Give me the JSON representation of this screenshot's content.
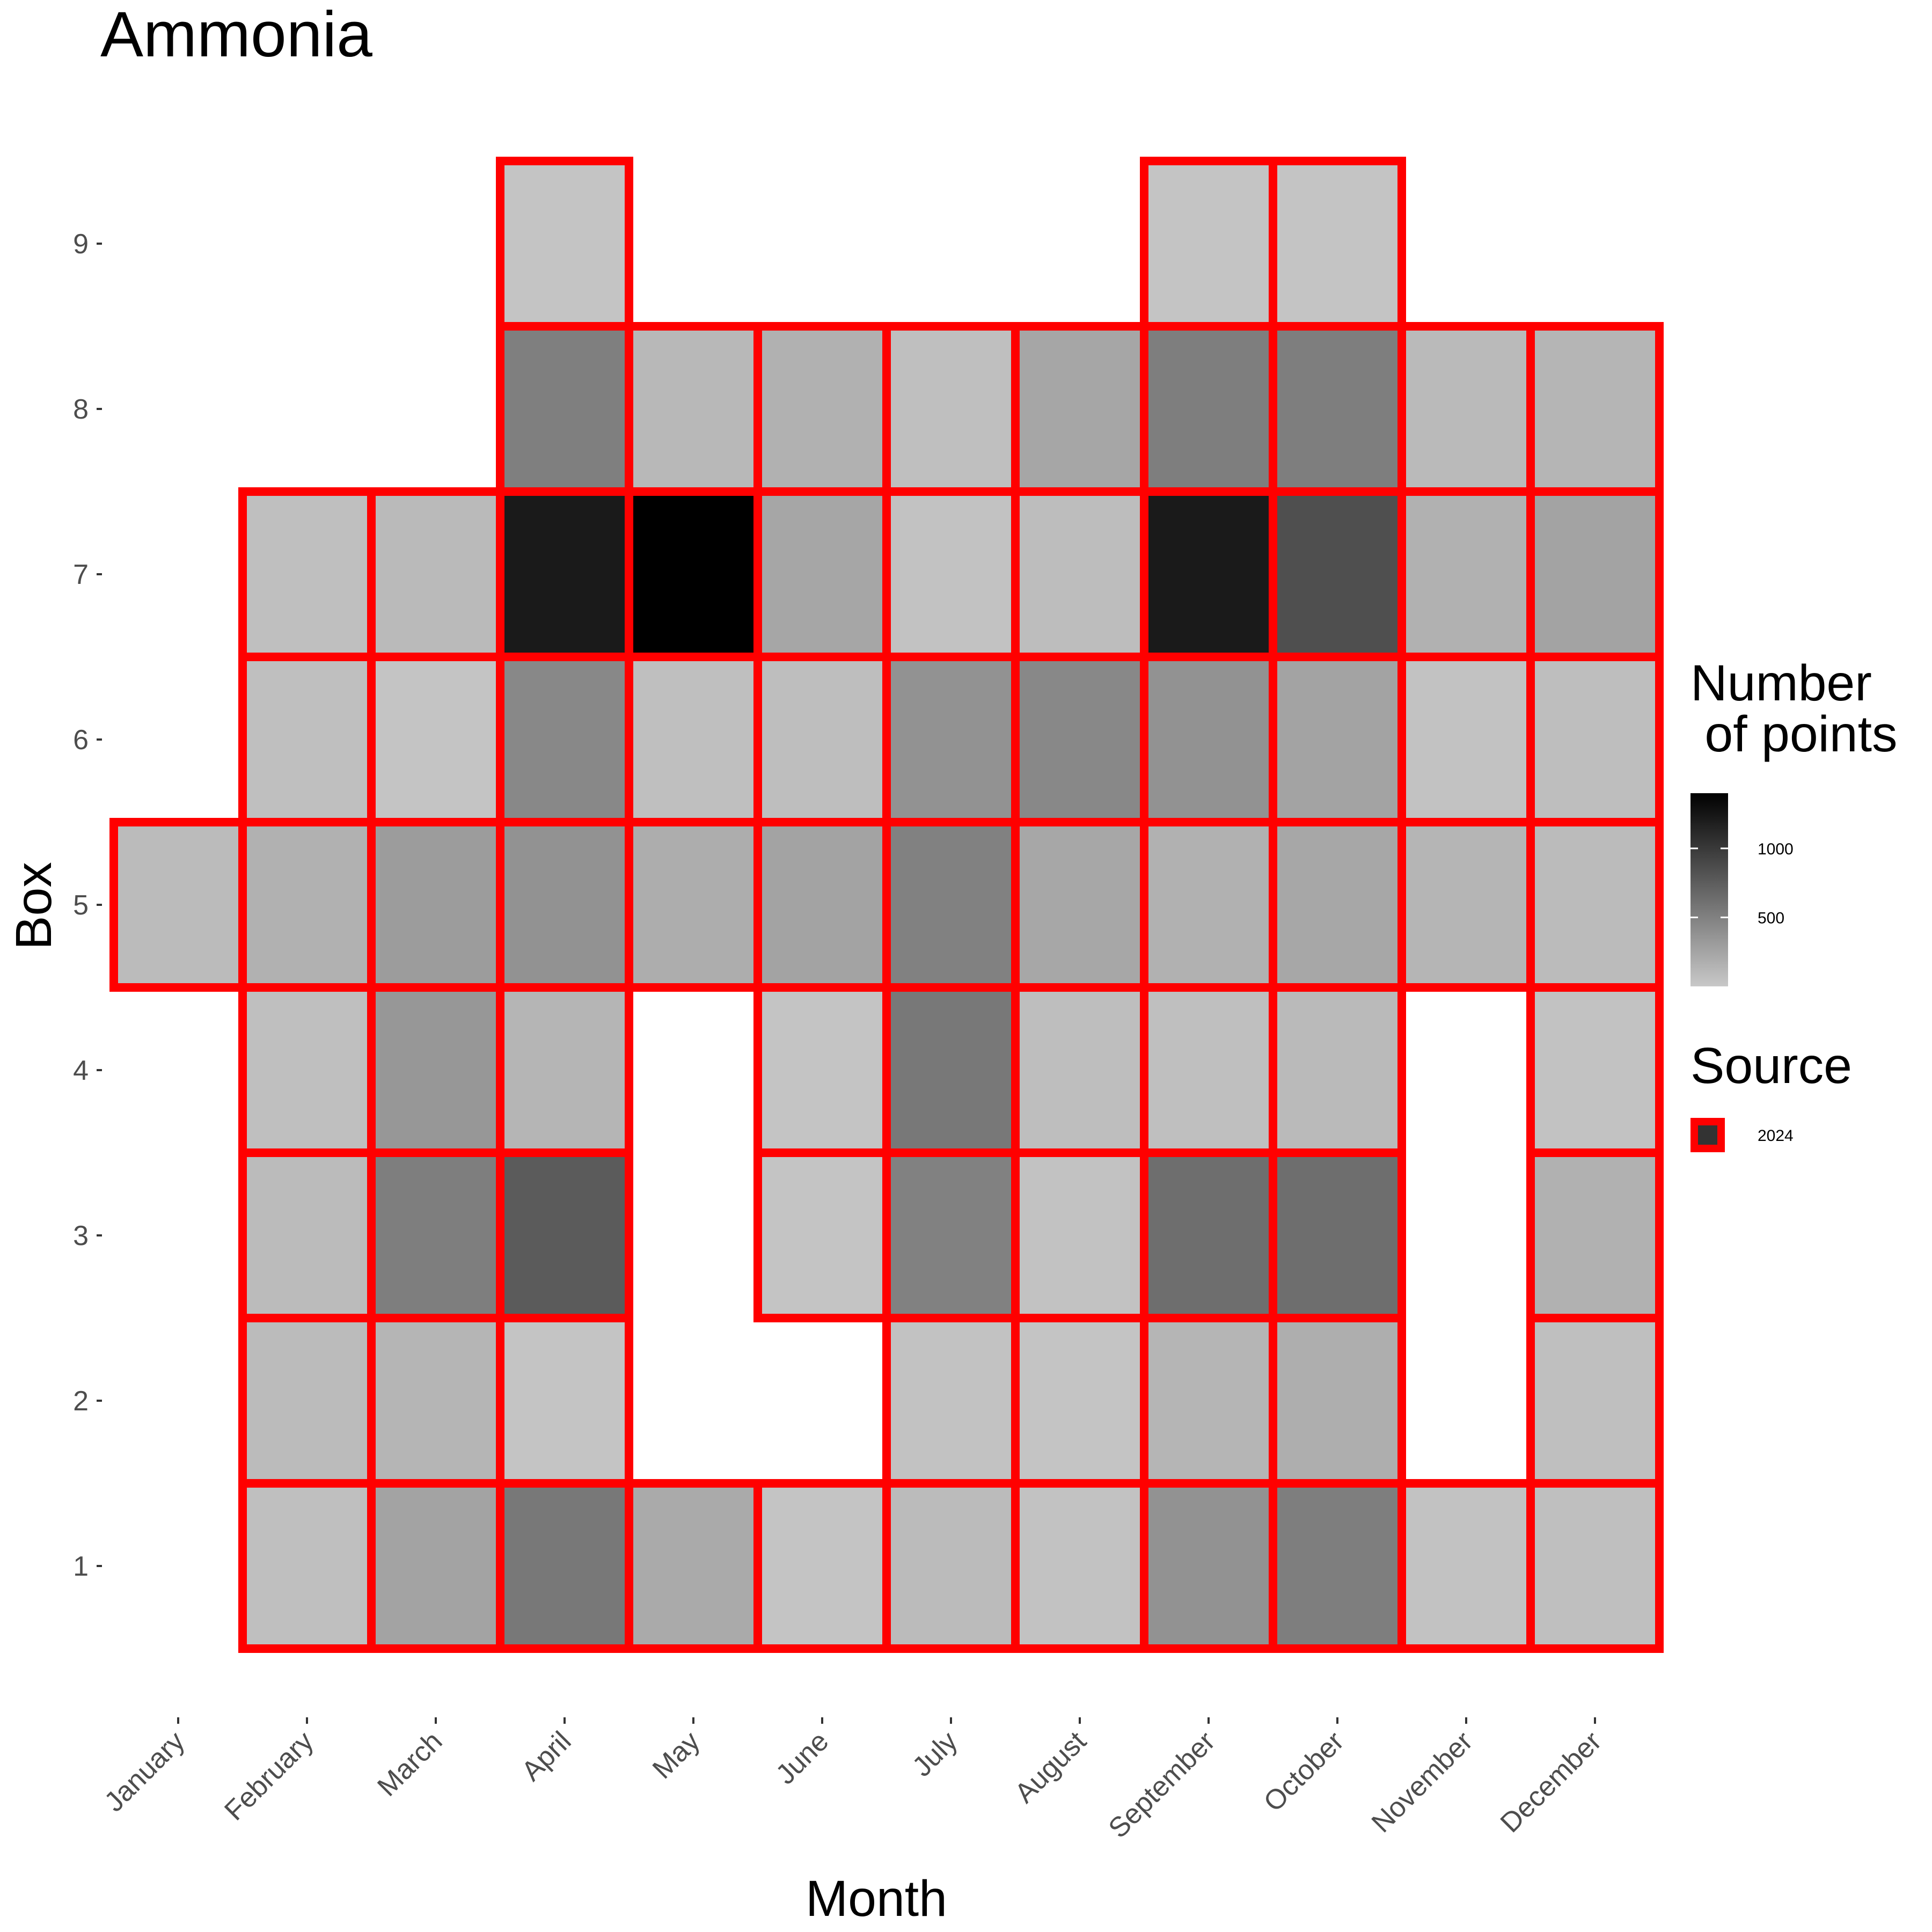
{
  "chart_data": {
    "type": "heatmap",
    "title": "Ammonia",
    "xlabel": "Month",
    "ylabel": "Box",
    "x_categories": [
      "January",
      "February",
      "March",
      "April",
      "May",
      "June",
      "July",
      "August",
      "September",
      "October",
      "November",
      "December"
    ],
    "y_categories": [
      "1",
      "2",
      "3",
      "4",
      "5",
      "6",
      "7",
      "8",
      "9"
    ],
    "fill_scale": {
      "title": "Number\n of points",
      "ticks": [
        500,
        1000
      ],
      "min": 0,
      "max": 1400,
      "low_color": "#c8c8c8",
      "high_color": "#000000"
    },
    "source_legend": {
      "title": "Source",
      "entries": [
        {
          "label": "2024",
          "border_color": "#ff0000",
          "fill": "#333333"
        }
      ]
    },
    "border_color": "#ff0000",
    "cells": [
      {
        "month": "January",
        "box": 5,
        "value": 90
      },
      {
        "month": "February",
        "box": 1,
        "value": 60
      },
      {
        "month": "February",
        "box": 2,
        "value": 90
      },
      {
        "month": "February",
        "box": 3,
        "value": 90
      },
      {
        "month": "February",
        "box": 4,
        "value": 60
      },
      {
        "month": "February",
        "box": 5,
        "value": 160
      },
      {
        "month": "February",
        "box": 6,
        "value": 60
      },
      {
        "month": "February",
        "box": 7,
        "value": 60
      },
      {
        "month": "March",
        "box": 1,
        "value": 260
      },
      {
        "month": "March",
        "box": 2,
        "value": 130
      },
      {
        "month": "March",
        "box": 3,
        "value": 520
      },
      {
        "month": "March",
        "box": 4,
        "value": 340
      },
      {
        "month": "March",
        "box": 5,
        "value": 310
      },
      {
        "month": "March",
        "box": 6,
        "value": 30
      },
      {
        "month": "March",
        "box": 7,
        "value": 100
      },
      {
        "month": "April",
        "box": 1,
        "value": 560
      },
      {
        "month": "April",
        "box": 2,
        "value": 30
      },
      {
        "month": "April",
        "box": 3,
        "value": 760
      },
      {
        "month": "April",
        "box": 4,
        "value": 130
      },
      {
        "month": "April",
        "box": 5,
        "value": 380
      },
      {
        "month": "April",
        "box": 6,
        "value": 450
      },
      {
        "month": "April",
        "box": 7,
        "value": 1220
      },
      {
        "month": "April",
        "box": 8,
        "value": 510
      },
      {
        "month": "April",
        "box": 9,
        "value": 30
      },
      {
        "month": "May",
        "box": 1,
        "value": 210
      },
      {
        "month": "May",
        "box": 5,
        "value": 190
      },
      {
        "month": "May",
        "box": 6,
        "value": 60
      },
      {
        "month": "May",
        "box": 7,
        "value": 1400
      },
      {
        "month": "May",
        "box": 8,
        "value": 110
      },
      {
        "month": "June",
        "box": 1,
        "value": 30
      },
      {
        "month": "June",
        "box": 3,
        "value": 30
      },
      {
        "month": "June",
        "box": 4,
        "value": 30
      },
      {
        "month": "June",
        "box": 5,
        "value": 260
      },
      {
        "month": "June",
        "box": 6,
        "value": 70
      },
      {
        "month": "June",
        "box": 7,
        "value": 240
      },
      {
        "month": "June",
        "box": 8,
        "value": 160
      },
      {
        "month": "July",
        "box": 1,
        "value": 90
      },
      {
        "month": "July",
        "box": 2,
        "value": 40
      },
      {
        "month": "July",
        "box": 3,
        "value": 500
      },
      {
        "month": "July",
        "box": 4,
        "value": 560
      },
      {
        "month": "July",
        "box": 5,
        "value": 500
      },
      {
        "month": "July",
        "box": 6,
        "value": 380
      },
      {
        "month": "July",
        "box": 7,
        "value": 40
      },
      {
        "month": "July",
        "box": 8,
        "value": 60
      },
      {
        "month": "August",
        "box": 1,
        "value": 40
      },
      {
        "month": "August",
        "box": 2,
        "value": 30
      },
      {
        "month": "August",
        "box": 3,
        "value": 40
      },
      {
        "month": "August",
        "box": 4,
        "value": 70
      },
      {
        "month": "August",
        "box": 5,
        "value": 230
      },
      {
        "month": "August",
        "box": 6,
        "value": 450
      },
      {
        "month": "August",
        "box": 7,
        "value": 80
      },
      {
        "month": "August",
        "box": 8,
        "value": 240
      },
      {
        "month": "September",
        "box": 1,
        "value": 380
      },
      {
        "month": "September",
        "box": 2,
        "value": 130
      },
      {
        "month": "September",
        "box": 3,
        "value": 630
      },
      {
        "month": "September",
        "box": 4,
        "value": 60
      },
      {
        "month": "September",
        "box": 5,
        "value": 160
      },
      {
        "month": "September",
        "box": 6,
        "value": 380
      },
      {
        "month": "September",
        "box": 7,
        "value": 1220
      },
      {
        "month": "September",
        "box": 8,
        "value": 520
      },
      {
        "month": "September",
        "box": 9,
        "value": 30
      },
      {
        "month": "October",
        "box": 1,
        "value": 520
      },
      {
        "month": "October",
        "box": 2,
        "value": 180
      },
      {
        "month": "October",
        "box": 3,
        "value": 630
      },
      {
        "month": "October",
        "box": 4,
        "value": 100
      },
      {
        "month": "October",
        "box": 5,
        "value": 230
      },
      {
        "month": "October",
        "box": 6,
        "value": 260
      },
      {
        "month": "October",
        "box": 7,
        "value": 850
      },
      {
        "month": "October",
        "box": 8,
        "value": 520
      },
      {
        "month": "October",
        "box": 9,
        "value": 30
      },
      {
        "month": "November",
        "box": 1,
        "value": 40
      },
      {
        "month": "November",
        "box": 5,
        "value": 130
      },
      {
        "month": "November",
        "box": 6,
        "value": 40
      },
      {
        "month": "November",
        "box": 7,
        "value": 160
      },
      {
        "month": "November",
        "box": 8,
        "value": 100
      },
      {
        "month": "December",
        "box": 1,
        "value": 60
      },
      {
        "month": "December",
        "box": 2,
        "value": 60
      },
      {
        "month": "December",
        "box": 3,
        "value": 160
      },
      {
        "month": "December",
        "box": 4,
        "value": 40
      },
      {
        "month": "December",
        "box": 5,
        "value": 90
      },
      {
        "month": "December",
        "box": 6,
        "value": 70
      },
      {
        "month": "December",
        "box": 7,
        "value": 260
      },
      {
        "month": "December",
        "box": 8,
        "value": 130
      }
    ]
  }
}
